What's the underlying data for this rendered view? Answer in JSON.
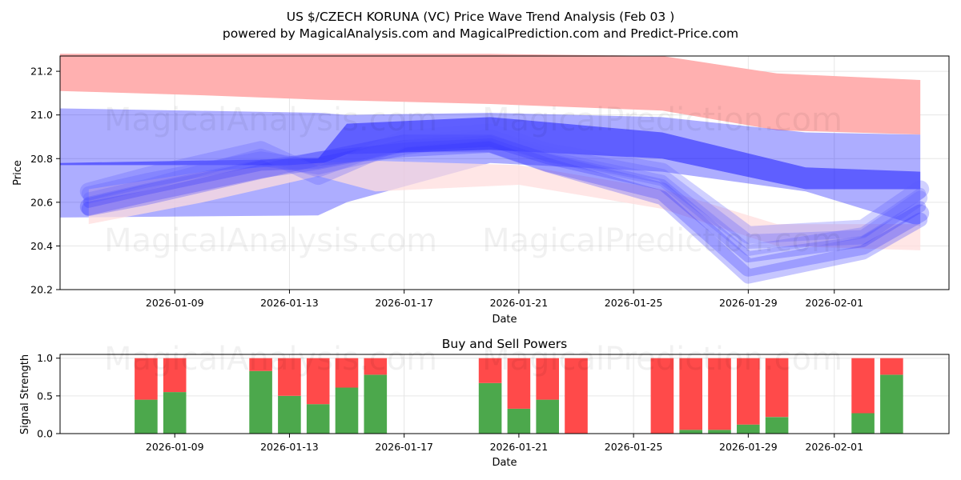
{
  "title": "US $/CZECH KORUNA (VC) Price Wave Trend Analysis (Feb 03 )",
  "subtitle": "powered by MagicalAnalysis.com and MagicalPrediction.com and Predict-Price.com",
  "watermarks": [
    "MagicalAnalysis.com",
    "MagicalPrediction.com"
  ],
  "colors": {
    "upper_band": "#ffb0b0",
    "lower_band": "#ffdede",
    "blue_band": "#0000ff",
    "buy": "#4ca84c",
    "sell": "#ff4a4a",
    "grid": "#e6e6e6"
  },
  "chart_data": [
    {
      "type": "area",
      "name": "price-wave-trend",
      "xlabel": "Date",
      "ylabel": "Price",
      "xlim": [
        "2026-01-05",
        "2026-02-05"
      ],
      "ylim": [
        20.2,
        21.27
      ],
      "x_ticks": [
        "2026-01-09",
        "2026-01-13",
        "2026-01-17",
        "2026-01-21",
        "2026-01-25",
        "2026-01-29",
        "2026-02-01"
      ],
      "y_ticks": [
        "20.2",
        "20.4",
        "20.6",
        "20.8",
        "21.0",
        "21.2"
      ],
      "grid": true,
      "bands": [
        {
          "name": "upper-red-band",
          "x": [
            "2026-01-05",
            "2026-01-10",
            "2026-01-14",
            "2026-01-20",
            "2026-01-26",
            "2026-01-30",
            "2026-02-04"
          ],
          "upper": [
            21.28,
            21.28,
            21.28,
            21.28,
            21.27,
            21.19,
            21.16
          ],
          "lower": [
            21.11,
            21.09,
            21.07,
            21.05,
            21.02,
            20.93,
            20.91
          ]
        },
        {
          "name": "outer-blue-band",
          "x": [
            "2026-01-05",
            "2026-01-14",
            "2026-01-15",
            "2026-01-20",
            "2026-01-26",
            "2026-01-31",
            "2026-02-04"
          ],
          "upper": [
            21.03,
            21.01,
            21.0,
            21.01,
            20.99,
            20.92,
            20.91
          ],
          "lower": [
            20.53,
            20.54,
            20.6,
            20.78,
            20.74,
            20.65,
            20.49
          ]
        },
        {
          "name": "inner-blue-band",
          "x": [
            "2026-01-05",
            "2026-01-14",
            "2026-01-15",
            "2026-01-20",
            "2026-01-26",
            "2026-01-31",
            "2026-02-04"
          ],
          "upper": [
            20.78,
            20.8,
            20.96,
            20.99,
            20.92,
            20.76,
            20.74
          ],
          "lower": [
            20.77,
            20.77,
            20.82,
            20.84,
            20.8,
            20.66,
            20.66
          ]
        },
        {
          "name": "pink-lower-band",
          "x": [
            "2026-01-06",
            "2026-01-10",
            "2026-01-14",
            "2026-01-16",
            "2026-01-21",
            "2026-01-26",
            "2026-01-30",
            "2026-02-04"
          ],
          "upper": [
            20.66,
            20.74,
            20.78,
            20.79,
            20.77,
            20.66,
            20.5,
            20.5
          ],
          "lower": [
            20.5,
            20.6,
            20.72,
            20.65,
            20.68,
            20.57,
            20.4,
            20.38
          ]
        }
      ],
      "waves": [
        {
          "name": "wave-1",
          "x": [
            "2026-01-06",
            "2026-01-08",
            "2026-01-12",
            "2026-01-14",
            "2026-01-17",
            "2026-01-20",
            "2026-01-22",
            "2026-01-26",
            "2026-01-29",
            "2026-02-02",
            "2026-02-04"
          ],
          "values": [
            20.6,
            20.66,
            20.77,
            20.78,
            20.86,
            20.88,
            20.8,
            20.68,
            20.35,
            20.42,
            20.58
          ]
        },
        {
          "name": "wave-2",
          "x": [
            "2026-01-06",
            "2026-01-08",
            "2026-01-12",
            "2026-01-14",
            "2026-01-17",
            "2026-01-20",
            "2026-01-22",
            "2026-01-26",
            "2026-01-29",
            "2026-02-02",
            "2026-02-04"
          ],
          "values": [
            20.64,
            20.7,
            20.8,
            20.76,
            20.85,
            20.9,
            20.82,
            20.72,
            20.42,
            20.44,
            20.62
          ]
        },
        {
          "name": "wave-3",
          "x": [
            "2026-01-06",
            "2026-01-08",
            "2026-01-12",
            "2026-01-14",
            "2026-01-17",
            "2026-01-20",
            "2026-01-22",
            "2026-01-26",
            "2026-01-29",
            "2026-02-02",
            "2026-02-04"
          ],
          "values": [
            20.58,
            20.64,
            20.75,
            20.79,
            20.87,
            20.87,
            20.78,
            20.65,
            20.3,
            20.4,
            20.55
          ]
        },
        {
          "name": "wave-4",
          "x": [
            "2026-01-06",
            "2026-01-08",
            "2026-01-12",
            "2026-01-14",
            "2026-01-17",
            "2026-01-20",
            "2026-01-22",
            "2026-01-26",
            "2026-01-29",
            "2026-02-02",
            "2026-02-04"
          ],
          "values": [
            20.62,
            20.68,
            20.82,
            20.74,
            20.88,
            20.91,
            20.81,
            20.7,
            20.38,
            20.46,
            20.64
          ]
        },
        {
          "name": "wave-5",
          "x": [
            "2026-01-06",
            "2026-01-08",
            "2026-01-12",
            "2026-01-14",
            "2026-01-17",
            "2026-01-20",
            "2026-01-22",
            "2026-01-26",
            "2026-01-29",
            "2026-02-02",
            "2026-02-04"
          ],
          "values": [
            20.57,
            20.62,
            20.74,
            20.8,
            20.84,
            20.86,
            20.77,
            20.62,
            20.26,
            20.37,
            20.52
          ]
        },
        {
          "name": "wave-6",
          "x": [
            "2026-01-06",
            "2026-01-08",
            "2026-01-12",
            "2026-01-14",
            "2026-01-17",
            "2026-01-20",
            "2026-01-22",
            "2026-01-26",
            "2026-01-29",
            "2026-02-02",
            "2026-02-04"
          ],
          "values": [
            20.65,
            20.72,
            20.84,
            20.72,
            20.89,
            20.92,
            20.83,
            20.74,
            20.45,
            20.48,
            20.66
          ]
        }
      ]
    },
    {
      "type": "bar",
      "name": "buy-sell-powers",
      "title": "Buy and Sell Powers",
      "xlabel": "Date",
      "ylabel": "Signal Strength",
      "xlim": [
        "2026-01-05",
        "2026-02-05"
      ],
      "ylim": [
        0,
        1.05
      ],
      "x_ticks": [
        "2026-01-09",
        "2026-01-13",
        "2026-01-17",
        "2026-01-21",
        "2026-01-25",
        "2026-01-29",
        "2026-02-01"
      ],
      "y_ticks": [
        "0.0",
        "0.5",
        "1.0"
      ],
      "grid": true,
      "series": [
        {
          "name": "Buy",
          "x": [
            "2026-01-08",
            "2026-01-09",
            "2026-01-12",
            "2026-01-13",
            "2026-01-14",
            "2026-01-15",
            "2026-01-16",
            "2026-01-20",
            "2026-01-21",
            "2026-01-22",
            "2026-01-23",
            "2026-01-26",
            "2026-01-27",
            "2026-01-28",
            "2026-01-29",
            "2026-01-30",
            "2026-02-02",
            "2026-02-03"
          ],
          "values": [
            0.45,
            0.55,
            0.83,
            0.5,
            0.39,
            0.61,
            0.78,
            0.67,
            0.33,
            0.45,
            0.0,
            0.0,
            0.05,
            0.05,
            0.12,
            0.22,
            0.27,
            0.78
          ]
        },
        {
          "name": "Sell",
          "x": [
            "2026-01-08",
            "2026-01-09",
            "2026-01-12",
            "2026-01-13",
            "2026-01-14",
            "2026-01-15",
            "2026-01-16",
            "2026-01-20",
            "2026-01-21",
            "2026-01-22",
            "2026-01-23",
            "2026-01-26",
            "2026-01-27",
            "2026-01-28",
            "2026-01-29",
            "2026-01-30",
            "2026-02-02",
            "2026-02-03"
          ],
          "values": [
            0.55,
            0.45,
            0.17,
            0.5,
            0.61,
            0.39,
            0.22,
            0.33,
            0.67,
            0.55,
            1.0,
            1.0,
            0.95,
            0.95,
            0.88,
            0.78,
            0.73,
            0.22
          ]
        }
      ]
    }
  ]
}
